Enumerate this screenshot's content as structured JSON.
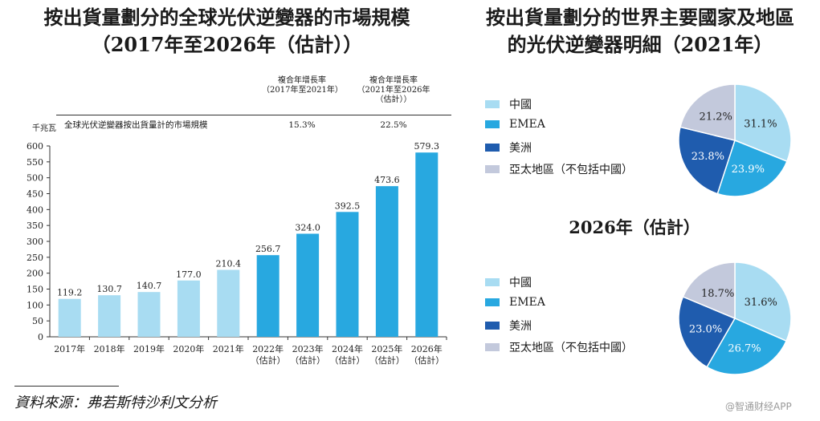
{
  "left_title_line1": "按出貨量劃分的全球光伏逆變器的市場規模",
  "left_title_line2": "（2017年至2026年（估計））",
  "right_title_line1": "按出貨量劃分的世界主要國家及地區",
  "right_title_line2": "的光伏逆變器明細（2021年）",
  "cagr_header_1": [
    "複合年增長率",
    "（2017年至2021年）"
  ],
  "cagr_header_2": [
    "複合年增長率",
    "（2021年至2026年",
    "（估計））"
  ],
  "row_label": "全球光伏逆變器按出貨量計的市場規模",
  "cagr_value_1": "15.3%",
  "cagr_value_2": "22.5%",
  "unit_label": "千兆瓦",
  "pie2_title": "2026年（估計）",
  "source": "資料來源：弗若斯特沙利文分析",
  "watermark": "@智通财经APP",
  "colors": {
    "historical": "#a8dcf2",
    "forecast": "#28a8e0",
    "china": "#a8dcf2",
    "emea": "#28a8e0",
    "americas": "#1f5cae",
    "apac": "#c3c9dc"
  },
  "chart_data": [
    {
      "type": "bar",
      "title": "按出貨量劃分的全球光伏逆變器的市場規模（2017年至2026年（估計））",
      "ylabel": "千兆瓦",
      "ylim": [
        0,
        600
      ],
      "yticks": [
        0,
        50,
        100,
        150,
        200,
        250,
        300,
        350,
        400,
        450,
        500,
        550,
        600
      ],
      "categories": [
        [
          "2017年"
        ],
        [
          "2018年"
        ],
        [
          "2019年"
        ],
        [
          "2020年"
        ],
        [
          "2021年"
        ],
        [
          "2022年",
          "（估計）"
        ],
        [
          "2023年",
          "（估計）"
        ],
        [
          "2024年",
          "（估計）"
        ],
        [
          "2025年",
          "（估計）"
        ],
        [
          "2026年",
          "（估計）"
        ]
      ],
      "values": [
        119.2,
        130.7,
        140.7,
        177.0,
        210.4,
        256.7,
        324.0,
        392.5,
        473.6,
        579.3
      ],
      "labels": [
        "119.2",
        "130.7",
        "140.7",
        "177.0",
        "210.4",
        "256.7",
        "324.0",
        "392.5",
        "473.6",
        "579.3"
      ],
      "series_type": [
        "historical",
        "historical",
        "historical",
        "historical",
        "historical",
        "forecast",
        "forecast",
        "forecast",
        "forecast",
        "forecast"
      ]
    },
    {
      "type": "pie",
      "title": "2021年",
      "slices": [
        {
          "name": "中國",
          "value": 31.1,
          "label": "31.1%",
          "color_key": "china"
        },
        {
          "name": "EMEA",
          "value": 23.9,
          "label": "23.9%",
          "color_key": "emea"
        },
        {
          "name": "美洲",
          "value": 23.8,
          "label": "23.8%",
          "color_key": "americas"
        },
        {
          "name": "亞太地區（不包括中國）",
          "value": 21.2,
          "label": "21.2%",
          "color_key": "apac"
        }
      ]
    },
    {
      "type": "pie",
      "title": "2026年（估計）",
      "slices": [
        {
          "name": "中國",
          "value": 31.6,
          "label": "31.6%",
          "color_key": "china"
        },
        {
          "name": "EMEA",
          "value": 26.7,
          "label": "26.7%",
          "color_key": "emea"
        },
        {
          "name": "美洲",
          "value": 23.0,
          "label": "23.0%",
          "color_key": "americas"
        },
        {
          "name": "亞太地區（不包括中國）",
          "value": 18.7,
          "label": "18.7%",
          "color_key": "apac"
        }
      ]
    }
  ]
}
